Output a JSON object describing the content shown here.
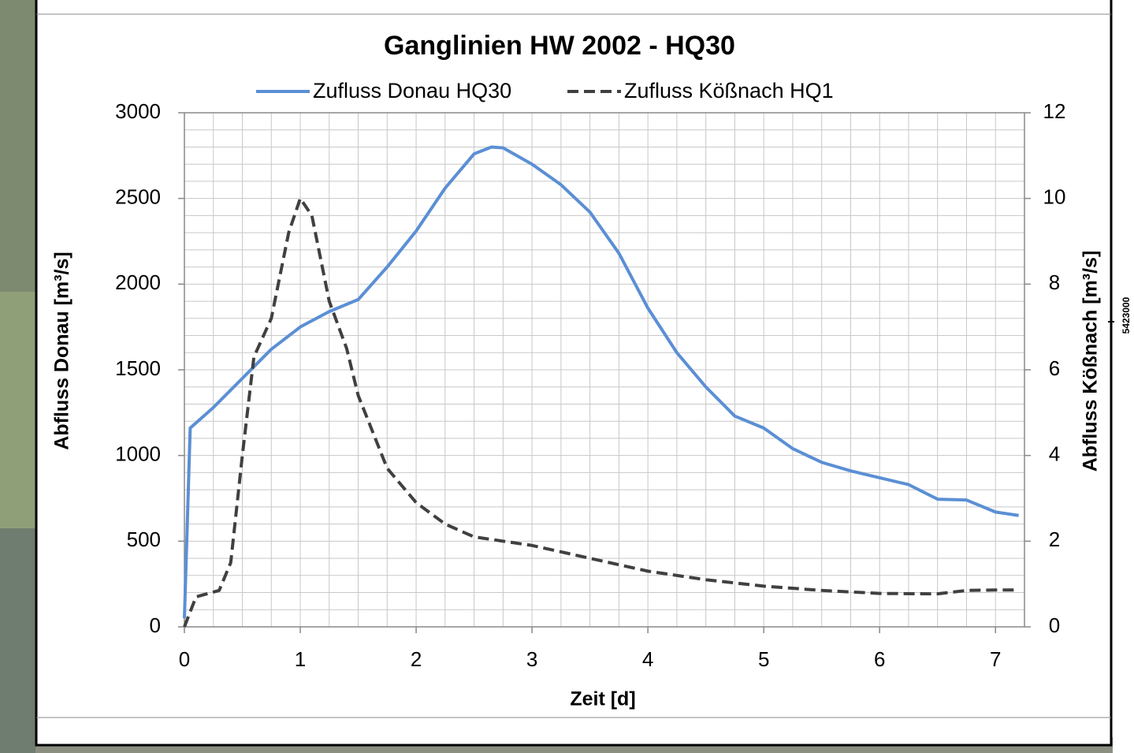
{
  "chart_data": {
    "type": "line",
    "title": "Ganglinien HW 2002 - HQ30",
    "xlabel": "Zeit [d]",
    "ylabel": "Abfluss Donau [m³/s]",
    "y2label": "Abfluss Kößnach [m³/s]",
    "xlim": [
      0,
      7.25
    ],
    "xticks": [
      0,
      1,
      2,
      3,
      4,
      5,
      6,
      7
    ],
    "ylim": [
      0,
      3000
    ],
    "yticks": [
      0,
      500,
      1000,
      1500,
      2000,
      2500,
      3000
    ],
    "y2lim": [
      0,
      12
    ],
    "y2ticks": [
      0,
      2,
      4,
      6,
      8,
      10,
      12
    ],
    "grid": true,
    "xgrid_step": 0.25,
    "ygrid_step": 100,
    "legend": "top",
    "series": [
      {
        "name": "Zufluss Donau HQ30",
        "color": "#5b8fd4",
        "dash": "solid",
        "x": [
          0,
          0.05,
          0.25,
          0.5,
          0.75,
          1,
          1.25,
          1.5,
          1.75,
          2,
          2.25,
          2.5,
          2.65,
          2.75,
          3,
          3.25,
          3.5,
          3.75,
          4,
          4.25,
          4.5,
          4.75,
          5,
          5.25,
          5.5,
          5.75,
          6,
          6.25,
          6.5,
          6.75,
          7,
          7.2
        ],
        "values": [
          50,
          1160,
          1280,
          1450,
          1620,
          1750,
          1840,
          1910,
          2100,
          2310,
          2560,
          2760,
          2800,
          2795,
          2700,
          2580,
          2420,
          2180,
          1860,
          1600,
          1400,
          1230,
          1160,
          1040,
          960,
          910,
          870,
          830,
          745,
          740,
          670,
          650
        ]
      },
      {
        "name": "Zufluss Kößnach HQ1",
        "color": "#404040",
        "dash": "dashed",
        "axis": "y2",
        "x": [
          0,
          0.1,
          0.3,
          0.4,
          0.5,
          0.6,
          0.75,
          0.9,
          1,
          1.1,
          1.25,
          1.4,
          1.5,
          1.75,
          2,
          2.25,
          2.5,
          2.75,
          3,
          3.5,
          4,
          4.5,
          5,
          5.5,
          6,
          6.5,
          6.75,
          7,
          7.2
        ],
        "values": [
          0,
          0.7,
          0.85,
          1.5,
          4,
          6.3,
          7.2,
          9.2,
          10,
          9.6,
          7.6,
          6.5,
          5.4,
          3.7,
          2.9,
          2.4,
          2.1,
          2.0,
          1.9,
          1.6,
          1.3,
          1.1,
          0.95,
          0.85,
          0.78,
          0.77,
          0.85,
          0.86,
          0.86
        ]
      }
    ]
  },
  "map_label": "5423000"
}
